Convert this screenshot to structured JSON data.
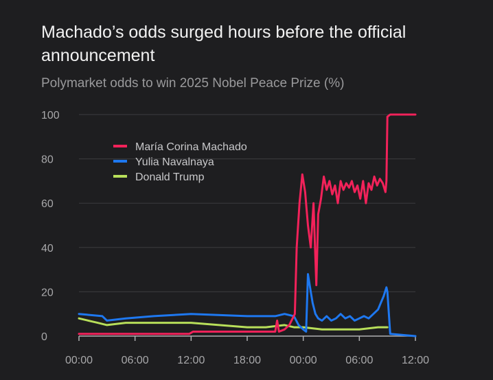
{
  "title": "Machado’s odds surged hours before the official announcement",
  "subtitle": "Polymarket odds to win 2025 Nobel Peace Prize (%)",
  "chart_data": {
    "type": "line",
    "title": "Machado’s odds surged hours before the official announcement",
    "subtitle": "Polymarket odds to win 2025 Nobel Peace Prize (%)",
    "xlabel": "",
    "ylabel": "",
    "xlim": [
      0,
      36
    ],
    "ylim": [
      0,
      100
    ],
    "x_ticks": [
      0,
      6,
      12,
      18,
      24,
      30,
      36
    ],
    "x_tick_labels": [
      "00:00",
      "06:00",
      "12:00",
      "18:00",
      "00:00",
      "06:00",
      "12:00"
    ],
    "y_ticks": [
      0,
      20,
      40,
      60,
      80,
      100
    ],
    "y_tick_labels": [
      "0",
      "20",
      "40",
      "60",
      "80",
      "100"
    ],
    "grid": true,
    "legend_position": "top-left",
    "series": [
      {
        "name": "María Corina Machado",
        "color": "#f2225a",
        "x": [
          0,
          6,
          11.8,
          12.2,
          18,
          21,
          21.2,
          21.4,
          22,
          22.5,
          23.1,
          23.3,
          23.6,
          23.9,
          24.2,
          24.5,
          24.8,
          25.1,
          25.4,
          25.6,
          25.9,
          26.2,
          26.5,
          26.8,
          27.1,
          27.4,
          27.7,
          28,
          28.3,
          28.6,
          28.9,
          29.2,
          29.5,
          29.8,
          30.1,
          30.4,
          30.7,
          31,
          31.3,
          31.6,
          31.9,
          32.2,
          32.5,
          32.8,
          32.9,
          33,
          33.3,
          34,
          35,
          36
        ],
        "y": [
          1,
          1,
          1,
          2,
          2,
          2,
          7,
          2,
          3,
          5,
          10,
          40,
          60,
          73,
          65,
          50,
          40,
          60,
          23,
          55,
          62,
          72,
          66,
          70,
          64,
          68,
          60,
          70,
          66,
          69,
          67,
          70,
          65,
          68,
          62,
          70,
          60,
          69,
          66,
          72,
          68,
          71,
          69,
          65,
          70,
          99,
          100,
          100,
          100,
          100
        ]
      },
      {
        "name": "Yulia Navalnaya",
        "color": "#1e78f0",
        "x": [
          0,
          2.5,
          3,
          5,
          8,
          12,
          18,
          21,
          22,
          23,
          23.5,
          24,
          24.3,
          24.5,
          24.8,
          25,
          25.3,
          25.6,
          26,
          26.5,
          27,
          27.5,
          28,
          28.5,
          29,
          29.5,
          30,
          30.5,
          31,
          31.5,
          32,
          32.3,
          32.6,
          32.9,
          33,
          33.3,
          36
        ],
        "y": [
          10,
          9,
          7,
          8,
          9,
          10,
          9,
          9,
          10,
          9,
          5,
          3,
          2,
          28,
          20,
          15,
          10,
          8,
          7,
          9,
          7,
          8,
          10,
          8,
          9,
          7,
          8,
          9,
          8,
          10,
          12,
          15,
          18,
          22,
          20,
          1,
          0
        ]
      },
      {
        "name": "Donald Trump",
        "color": "#b8df5a",
        "x": [
          0,
          1,
          2,
          3,
          5,
          8,
          12,
          15,
          18,
          20,
          22,
          23,
          24,
          26,
          28,
          30,
          32,
          33
        ],
        "y": [
          8,
          7,
          6,
          5,
          6,
          6,
          6,
          5,
          4,
          4,
          5,
          4,
          4,
          3,
          3,
          3,
          4,
          4
        ]
      }
    ]
  }
}
